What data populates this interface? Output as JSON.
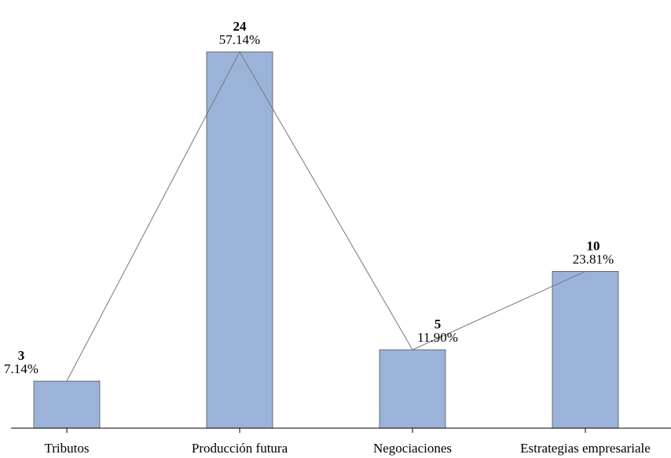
{
  "chart_data": {
    "type": "bar",
    "categories": [
      "Tributos",
      "Producción futura",
      "Negociaciones",
      "Estrategias empresariale"
    ],
    "values": [
      3,
      24,
      5,
      10
    ],
    "percent_labels": [
      "7.14%",
      "57.14%",
      "11.90%",
      "23.81%"
    ],
    "title": "",
    "xlabel": "",
    "ylabel": "",
    "ylim": [
      0,
      24
    ],
    "grid": false,
    "legend": "none",
    "overlay": "line connecting bar tops",
    "colors": {
      "bar_fill": "#9bb3d9",
      "bar_stroke": "#555555",
      "line": "#777777"
    }
  }
}
